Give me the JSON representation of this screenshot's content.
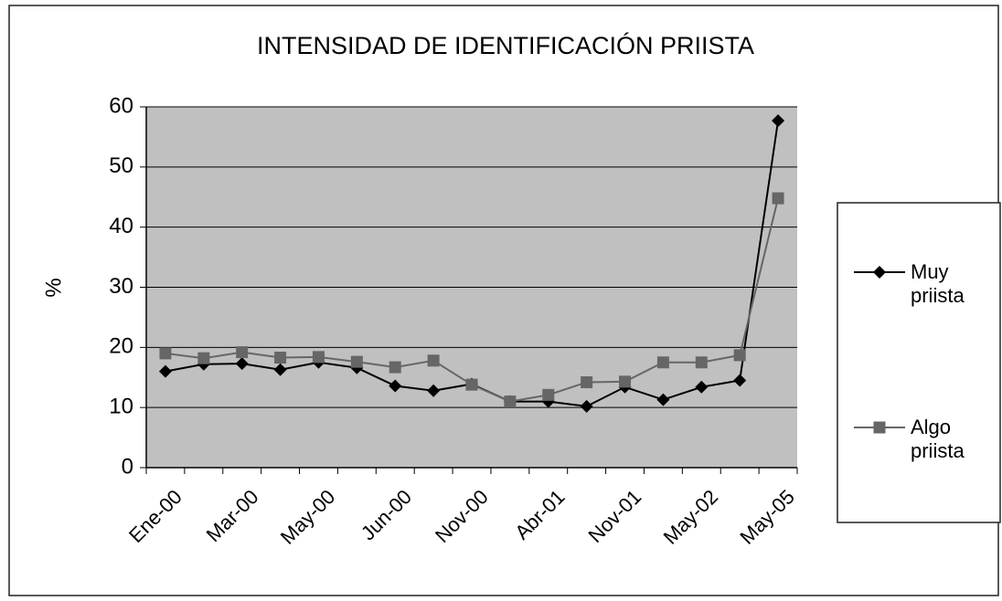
{
  "chart_data": {
    "type": "line",
    "title": "INTENSIDAD DE IDENTIFICACIÓN PRIISTA",
    "y_label": "%",
    "categories": [
      "Ene-00",
      null,
      "Mar-00",
      null,
      "May-00",
      null,
      "Jun-00",
      null,
      "Nov-00",
      null,
      "Abr-01",
      null,
      "Nov-01",
      null,
      "May-02",
      null,
      "May-05"
    ],
    "series": [
      {
        "name": "Muy priista",
        "color": "#000000",
        "marker": "diamond",
        "values": [
          16,
          17.2,
          17.3,
          16.3,
          17.5,
          16.6,
          13.6,
          12.8,
          13.9,
          11,
          11,
          10.2,
          13.4,
          11.3,
          13.4,
          14.5,
          57.7
        ]
      },
      {
        "name": "Algo priista",
        "color": "#666666",
        "marker": "square",
        "values": [
          19,
          18.2,
          19.2,
          18.3,
          18.4,
          17.6,
          16.7,
          17.8,
          13.8,
          11,
          12.1,
          14.2,
          14.3,
          17.5,
          17.5,
          18.7,
          44.8
        ]
      }
    ],
    "ylim": [
      0,
      60
    ],
    "yticks": [
      0,
      10,
      20,
      30,
      40,
      50,
      60
    ],
    "grid": true,
    "legend": "right"
  }
}
